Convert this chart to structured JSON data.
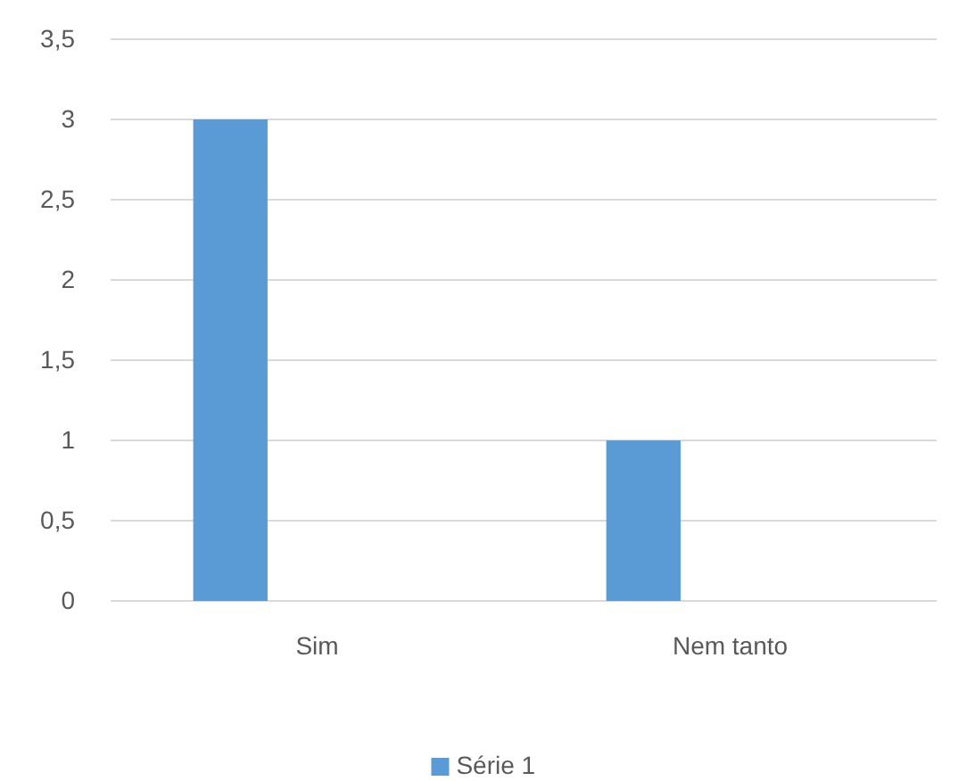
{
  "chart_data": {
    "type": "bar",
    "categories": [
      "Sim",
      "Nem tanto"
    ],
    "series": [
      {
        "name": "Série 1",
        "color": "#5b9bd5",
        "values": [
          3,
          1
        ]
      }
    ],
    "ylim": [
      0,
      3.5
    ],
    "yticks": [
      0,
      {
        "value": 0.5,
        "label": "0,5"
      },
      1,
      {
        "value": 1.5,
        "label": "1,5"
      },
      2,
      {
        "value": 2.5,
        "label": "2,5"
      },
      3,
      {
        "value": 3.5,
        "label": "3,5"
      }
    ],
    "grid": "y",
    "legend": "bottom"
  }
}
